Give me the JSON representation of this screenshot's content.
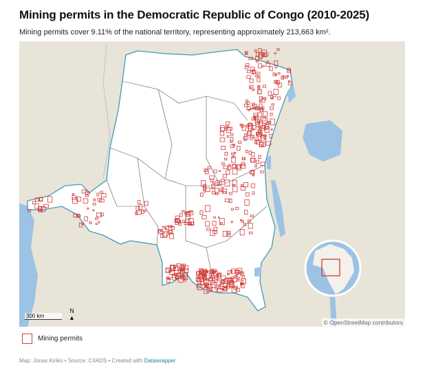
{
  "title": "Mining permits in the Democratic Republic of Congo (2010-2025)",
  "subtitle": "Mining permits cover 9.11% of the national territory, representing approximately 213,663 km².",
  "map": {
    "attribution": "© OpenStreetMap contributors",
    "scale_label": "300 km",
    "north_label": "N"
  },
  "legend": {
    "label": "Mining permits",
    "color": "#d03a3a"
  },
  "footer": {
    "text": "Map: Jonas Kiriko • Source: C4ADS • Created with ",
    "link": "Datawrapper"
  },
  "colors": {
    "land": "#e8e4d8",
    "water": "#9cc3e3",
    "country": "#ffffff",
    "border": "#3d9bb8",
    "permit": "#d03a3a"
  }
}
